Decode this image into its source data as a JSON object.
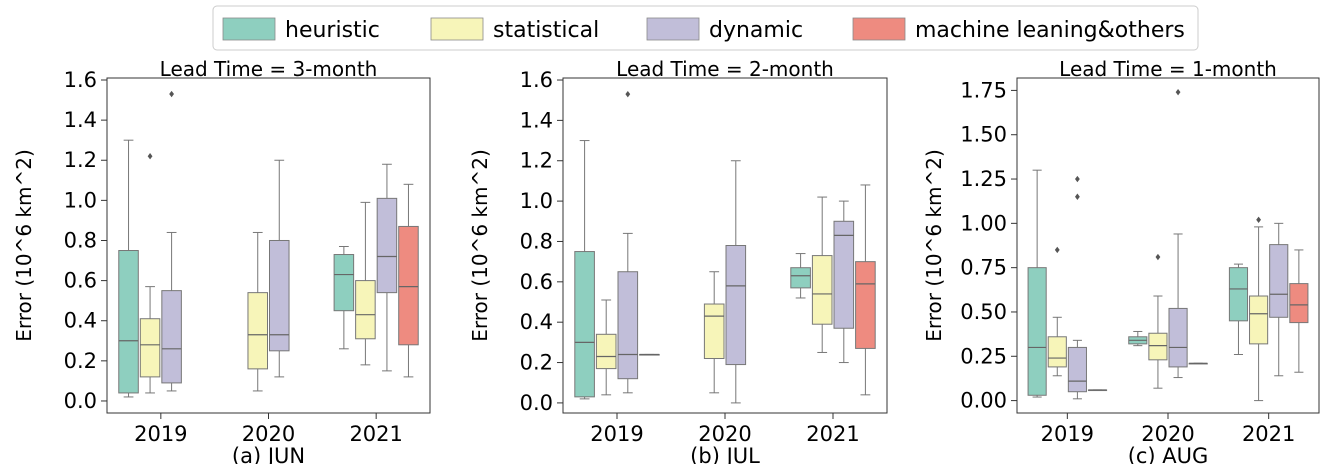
{
  "legend": {
    "placement": "top-center",
    "items": [
      {
        "label": "heuristic",
        "color": "#8ecfbf"
      },
      {
        "label": "statistical",
        "color": "#f7f5b9"
      },
      {
        "label": "dynamic",
        "color": "#c1bed9"
      },
      {
        "label": "machine leaning&others",
        "color": "#ee8b80"
      }
    ]
  },
  "chart_data": [
    {
      "type": "box",
      "title": "Lead Time = 3-month",
      "xlabel": "(a) JUN",
      "ylabel": "Error (10^6 km^2)",
      "ylim": [
        -0.06,
        1.61
      ],
      "yticks": [
        "0.0",
        "0.2",
        "0.4",
        "0.6",
        "0.8",
        "1.0",
        "1.2",
        "1.4",
        "1.6"
      ],
      "ytick_values": [
        0.0,
        0.2,
        0.4,
        0.6,
        0.8,
        1.0,
        1.2,
        1.4,
        1.6
      ],
      "categories": [
        "2019",
        "2020",
        "2021"
      ],
      "series": [
        {
          "name": "heuristic",
          "boxes": [
            {
              "category": "2019",
              "whislo": 0.02,
              "q1": 0.04,
              "med": 0.3,
              "q3": 0.75,
              "whishi": 1.3,
              "fliers": []
            },
            {
              "category": "2021",
              "whislo": 0.26,
              "q1": 0.45,
              "med": 0.63,
              "q3": 0.73,
              "whishi": 0.77,
              "fliers": []
            }
          ]
        },
        {
          "name": "statistical",
          "boxes": [
            {
              "category": "2019",
              "whislo": 0.04,
              "q1": 0.12,
              "med": 0.28,
              "q3": 0.41,
              "whishi": 0.57,
              "fliers": [
                1.22
              ]
            },
            {
              "category": "2020",
              "whislo": 0.05,
              "q1": 0.16,
              "med": 0.33,
              "q3": 0.54,
              "whishi": 0.84,
              "fliers": []
            },
            {
              "category": "2021",
              "whislo": 0.18,
              "q1": 0.31,
              "med": 0.43,
              "q3": 0.6,
              "whishi": 0.99,
              "fliers": []
            }
          ]
        },
        {
          "name": "dynamic",
          "boxes": [
            {
              "category": "2019",
              "whislo": 0.05,
              "q1": 0.09,
              "med": 0.26,
              "q3": 0.55,
              "whishi": 0.84,
              "fliers": [
                1.53
              ]
            },
            {
              "category": "2020",
              "whislo": 0.12,
              "q1": 0.25,
              "med": 0.33,
              "q3": 0.8,
              "whishi": 1.2,
              "fliers": []
            },
            {
              "category": "2021",
              "whislo": 0.15,
              "q1": 0.54,
              "med": 0.72,
              "q3": 1.01,
              "whishi": 1.18,
              "fliers": []
            }
          ]
        },
        {
          "name": "machine leaning&others",
          "boxes": [
            {
              "category": "2021",
              "whislo": 0.12,
              "q1": 0.28,
              "med": 0.57,
              "q3": 0.87,
              "whishi": 1.08,
              "fliers": []
            }
          ]
        }
      ]
    },
    {
      "type": "box",
      "title": "Lead Time = 2-month",
      "xlabel": "(b) JUL",
      "ylabel": "Error (10^6 km^2)",
      "ylim": [
        -0.05,
        1.61
      ],
      "yticks": [
        "0.0",
        "0.2",
        "0.4",
        "0.6",
        "0.8",
        "1.0",
        "1.2",
        "1.4",
        "1.6"
      ],
      "ytick_values": [
        0.0,
        0.2,
        0.4,
        0.6,
        0.8,
        1.0,
        1.2,
        1.4,
        1.6
      ],
      "categories": [
        "2019",
        "2020",
        "2021"
      ],
      "series": [
        {
          "name": "heuristic",
          "boxes": [
            {
              "category": "2019",
              "whislo": 0.02,
              "q1": 0.03,
              "med": 0.3,
              "q3": 0.75,
              "whishi": 1.3,
              "fliers": []
            },
            {
              "category": "2021",
              "whislo": 0.52,
              "q1": 0.57,
              "med": 0.63,
              "q3": 0.67,
              "whishi": 0.74,
              "fliers": []
            }
          ]
        },
        {
          "name": "statistical",
          "boxes": [
            {
              "category": "2019",
              "whislo": 0.04,
              "q1": 0.17,
              "med": 0.23,
              "q3": 0.34,
              "whishi": 0.51,
              "fliers": []
            },
            {
              "category": "2020",
              "whislo": 0.05,
              "q1": 0.22,
              "med": 0.43,
              "q3": 0.49,
              "whishi": 0.65,
              "fliers": []
            },
            {
              "category": "2021",
              "whislo": 0.25,
              "q1": 0.39,
              "med": 0.54,
              "q3": 0.73,
              "whishi": 1.02,
              "fliers": []
            }
          ]
        },
        {
          "name": "dynamic",
          "boxes": [
            {
              "category": "2019",
              "whislo": 0.05,
              "q1": 0.12,
              "med": 0.24,
              "q3": 0.65,
              "whishi": 0.84,
              "fliers": [
                1.53
              ]
            },
            {
              "category": "2020",
              "whislo": 0.0,
              "q1": 0.19,
              "med": 0.58,
              "q3": 0.78,
              "whishi": 1.2,
              "fliers": []
            },
            {
              "category": "2021",
              "whislo": 0.2,
              "q1": 0.37,
              "med": 0.83,
              "q3": 0.9,
              "whishi": 1.0,
              "fliers": []
            }
          ]
        },
        {
          "name": "machine leaning&others",
          "boxes": [
            {
              "category": "2019",
              "whislo": 0.24,
              "q1": 0.24,
              "med": 0.24,
              "q3": 0.24,
              "whishi": 0.24,
              "fliers": []
            },
            {
              "category": "2021",
              "whislo": 0.04,
              "q1": 0.27,
              "med": 0.59,
              "q3": 0.7,
              "whishi": 1.08,
              "fliers": []
            }
          ]
        }
      ]
    },
    {
      "type": "box",
      "title": "Lead Time = 1-month",
      "xlabel": "(c) AUG",
      "ylabel": "Error (10^6 km^2)",
      "ylim": [
        -0.07,
        1.82
      ],
      "yticks": [
        "0.00",
        "0.25",
        "0.50",
        "0.75",
        "1.00",
        "1.25",
        "1.50",
        "1.75"
      ],
      "ytick_values": [
        0.0,
        0.25,
        0.5,
        0.75,
        1.0,
        1.25,
        1.5,
        1.75
      ],
      "categories": [
        "2019",
        "2020",
        "2021"
      ],
      "series": [
        {
          "name": "heuristic",
          "boxes": [
            {
              "category": "2019",
              "whislo": 0.02,
              "q1": 0.03,
              "med": 0.3,
              "q3": 0.75,
              "whishi": 1.3,
              "fliers": []
            },
            {
              "category": "2020",
              "whislo": 0.31,
              "q1": 0.32,
              "med": 0.34,
              "q3": 0.36,
              "whishi": 0.39,
              "fliers": []
            },
            {
              "category": "2021",
              "whislo": 0.26,
              "q1": 0.45,
              "med": 0.63,
              "q3": 0.75,
              "whishi": 0.77,
              "fliers": []
            }
          ]
        },
        {
          "name": "statistical",
          "boxes": [
            {
              "category": "2019",
              "whislo": 0.14,
              "q1": 0.19,
              "med": 0.24,
              "q3": 0.36,
              "whishi": 0.47,
              "fliers": [
                0.85
              ]
            },
            {
              "category": "2020",
              "whislo": 0.07,
              "q1": 0.23,
              "med": 0.31,
              "q3": 0.38,
              "whishi": 0.59,
              "fliers": [
                0.81
              ]
            },
            {
              "category": "2021",
              "whislo": 0.0,
              "q1": 0.32,
              "med": 0.49,
              "q3": 0.59,
              "whishi": 0.98,
              "fliers": [
                1.02
              ]
            }
          ]
        },
        {
          "name": "dynamic",
          "boxes": [
            {
              "category": "2019",
              "whislo": 0.01,
              "q1": 0.05,
              "med": 0.11,
              "q3": 0.3,
              "whishi": 0.34,
              "fliers": [
                1.15,
                1.25
              ]
            },
            {
              "category": "2020",
              "whislo": 0.13,
              "q1": 0.19,
              "med": 0.3,
              "q3": 0.52,
              "whishi": 0.94,
              "fliers": [
                1.74
              ]
            },
            {
              "category": "2021",
              "whislo": 0.14,
              "q1": 0.47,
              "med": 0.6,
              "q3": 0.88,
              "whishi": 1.0,
              "fliers": []
            }
          ]
        },
        {
          "name": "machine leaning&others",
          "boxes": [
            {
              "category": "2019",
              "whislo": 0.06,
              "q1": 0.06,
              "med": 0.06,
              "q3": 0.06,
              "whishi": 0.06,
              "fliers": []
            },
            {
              "category": "2020",
              "whislo": 0.21,
              "q1": 0.21,
              "med": 0.21,
              "q3": 0.21,
              "whishi": 0.21,
              "fliers": []
            },
            {
              "category": "2021",
              "whislo": 0.16,
              "q1": 0.44,
              "med": 0.54,
              "q3": 0.66,
              "whishi": 0.85,
              "fliers": []
            }
          ]
        }
      ]
    }
  ]
}
